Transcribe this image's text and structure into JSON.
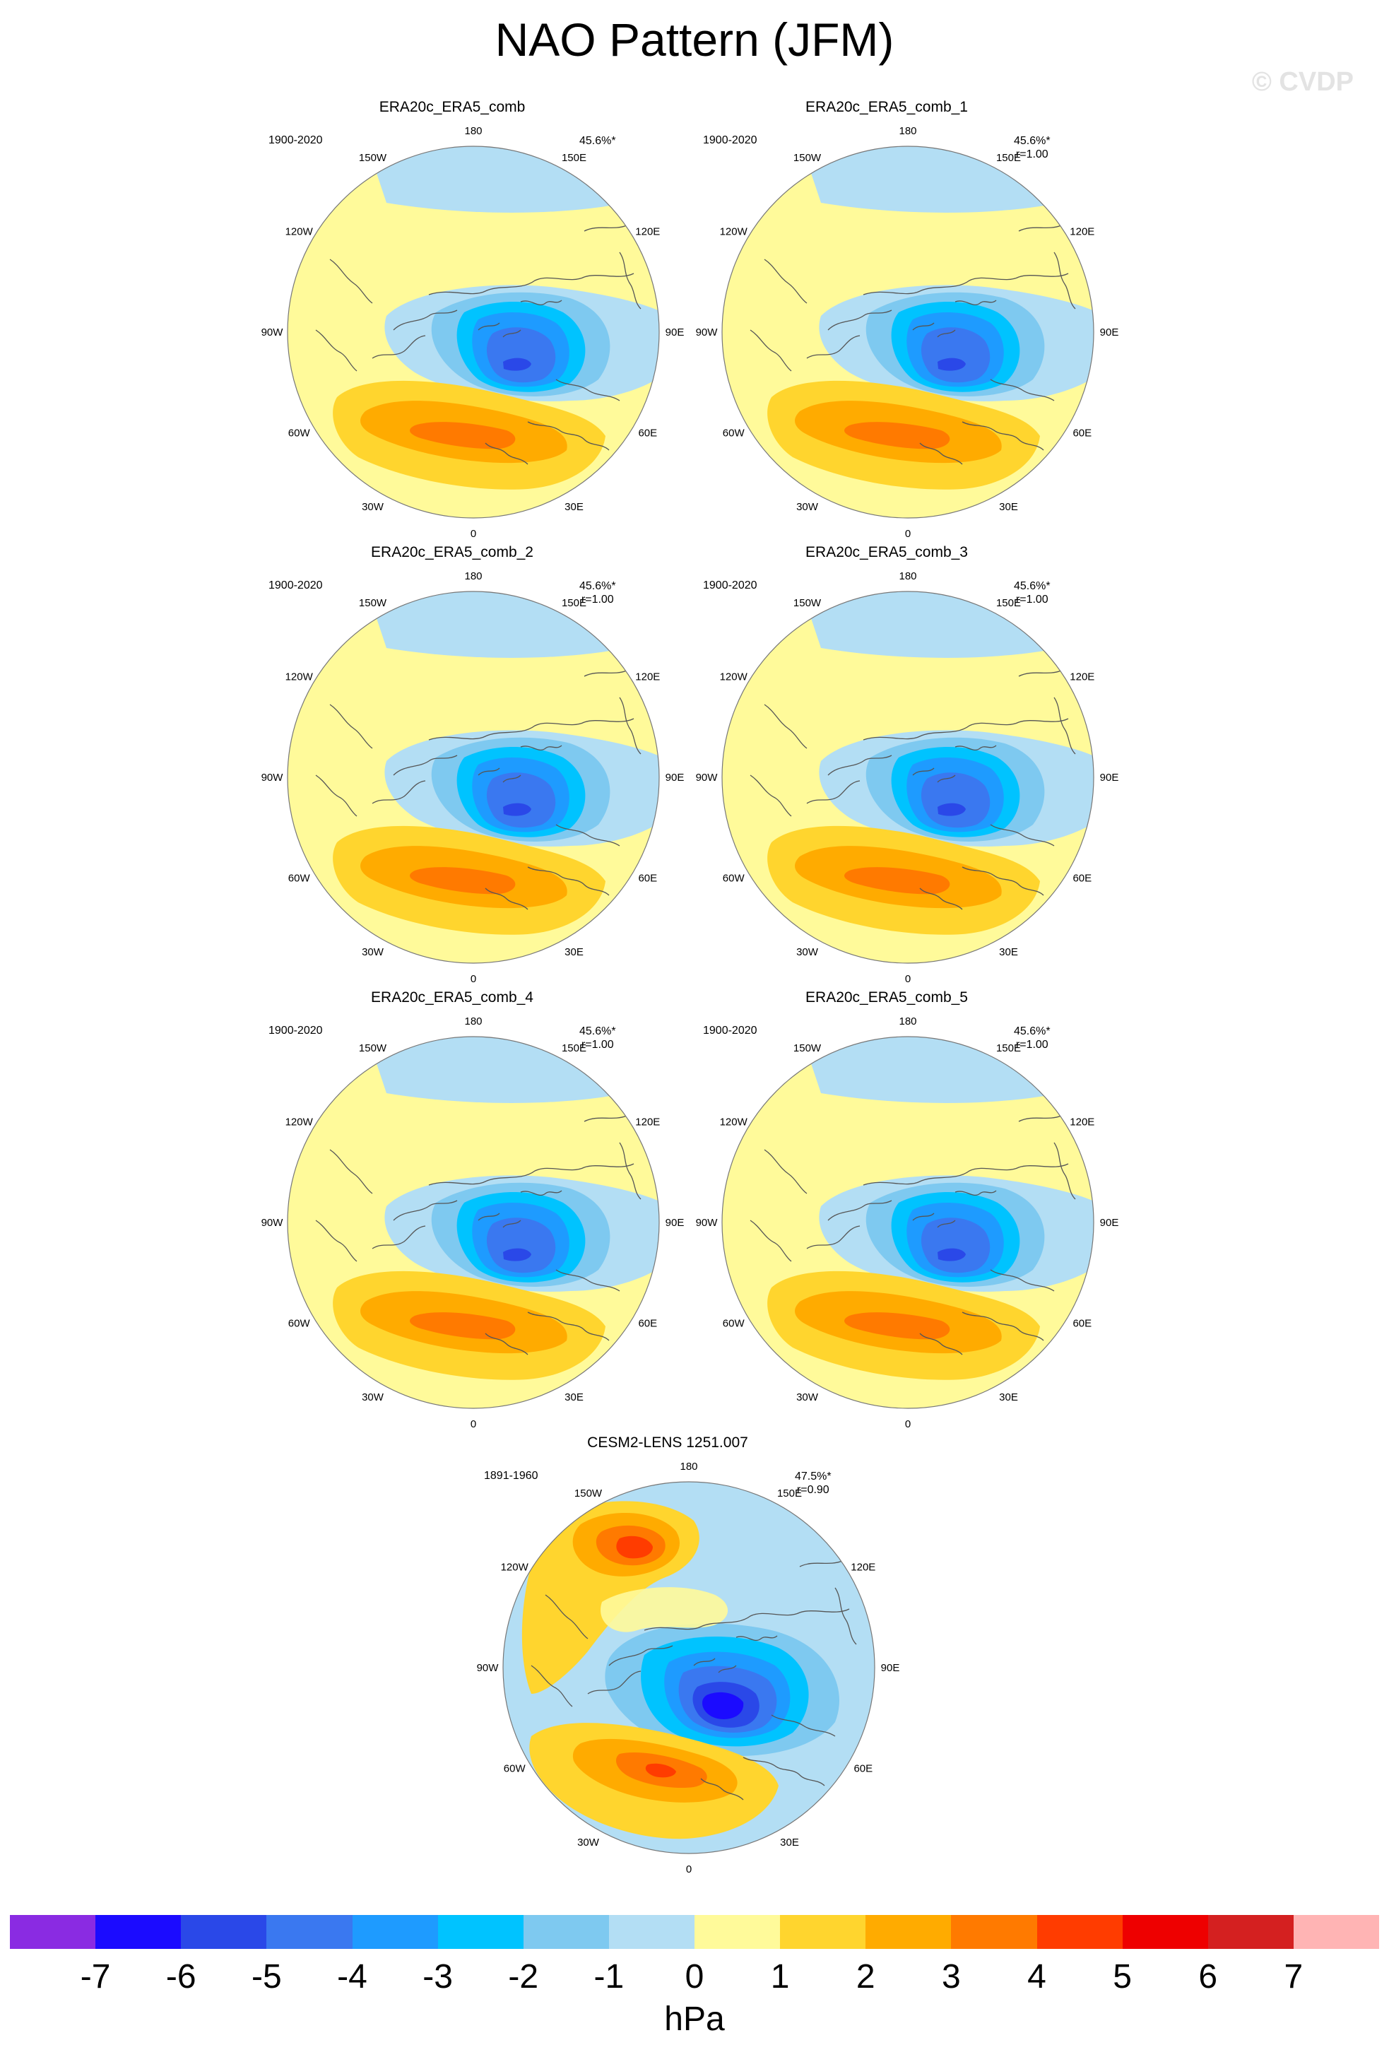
{
  "title": "NAO Pattern (JFM)",
  "watermark": "© CVDP",
  "lon_labels": [
    "180",
    "150E",
    "120E",
    "90E",
    "60E",
    "30E",
    "0",
    "30W",
    "60W",
    "90W",
    "120W",
    "150W"
  ],
  "panels": [
    {
      "title": "ERA20c_ERA5_comb",
      "period": "1900-2020",
      "pct": "45.6%*",
      "r": "",
      "variant": "obs"
    },
    {
      "title": "ERA20c_ERA5_comb_1",
      "period": "1900-2020",
      "pct": "45.6%*",
      "r": "r=1.00",
      "variant": "obs"
    },
    {
      "title": "ERA20c_ERA5_comb_2",
      "period": "1900-2020",
      "pct": "45.6%*",
      "r": "r=1.00",
      "variant": "obs"
    },
    {
      "title": "ERA20c_ERA5_comb_3",
      "period": "1900-2020",
      "pct": "45.6%*",
      "r": "r=1.00",
      "variant": "obs"
    },
    {
      "title": "ERA20c_ERA5_comb_4",
      "period": "1900-2020",
      "pct": "45.6%*",
      "r": "r=1.00",
      "variant": "obs"
    },
    {
      "title": "ERA20c_ERA5_comb_5",
      "period": "1900-2020",
      "pct": "45.6%*",
      "r": "r=1.00",
      "variant": "obs"
    },
    {
      "title": "CESM2-LENS 1251.007",
      "period": "1891-1960",
      "pct": "47.5%*",
      "r": "r=0.90",
      "variant": "model"
    }
  ],
  "colorbar": {
    "units": "hPa",
    "ticks": [
      "-7",
      "-6",
      "-5",
      "-4",
      "-3",
      "-2",
      "-1",
      "0",
      "1",
      "2",
      "3",
      "4",
      "5",
      "6",
      "7"
    ],
    "colors": [
      "#8a2be2",
      "#1b0bff",
      "#2a48e8",
      "#3a78f0",
      "#1e9bff",
      "#00c3ff",
      "#7ec9f0",
      "#b3def4",
      "#fffa9a",
      "#ffd52e",
      "#ffab00",
      "#ff7a00",
      "#ff3c00",
      "#ee0000",
      "#d42020",
      "#ffb4b4"
    ]
  }
}
